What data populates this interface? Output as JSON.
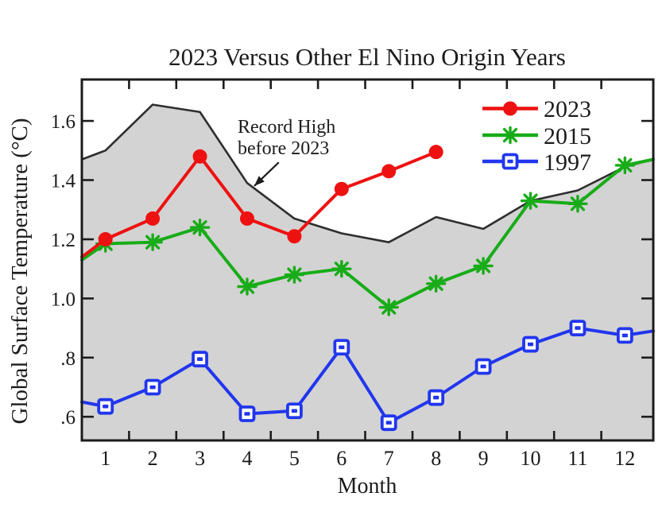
{
  "chart_data": {
    "type": "line",
    "title": "2023 Versus Other El Nino Origin Years",
    "xlabel": "Month",
    "ylabel": "Global Surface Temperature (°C)",
    "x_tick_labels": [
      "1",
      "2",
      "3",
      "4",
      "5",
      "6",
      "7",
      "8",
      "9",
      "10",
      "11",
      "12"
    ],
    "y_tick_labels": [
      ".6",
      ".8",
      "1.0",
      "1.2",
      "1.4",
      "1.6"
    ],
    "y_tick_values": [
      0.6,
      0.8,
      1.0,
      1.2,
      1.4,
      1.6
    ],
    "xlim": [
      0.5,
      12.6
    ],
    "ylim": [
      0.52,
      1.74
    ],
    "grid": false,
    "legend_position": "upper right",
    "record_high": {
      "name": "Record High before 2023",
      "annotation_line1": "Record High",
      "annotation_line2": "before 2023",
      "line_color": "#2e2e2e",
      "fill_color": "#d3d3d3",
      "x": [
        0.5,
        1,
        2,
        3,
        4,
        5,
        6,
        7,
        8,
        9,
        10,
        11,
        12,
        12.6
      ],
      "values": [
        1.47,
        1.5,
        1.655,
        1.63,
        1.39,
        1.27,
        1.22,
        1.19,
        1.275,
        1.235,
        1.33,
        1.365,
        1.445,
        1.47
      ],
      "arrow_tip": {
        "month": 4.15,
        "value": 1.38
      },
      "arrow_tail": {
        "month": 4.67,
        "value": 1.46
      }
    },
    "series": [
      {
        "name": "2023",
        "color": "#ee1111",
        "marker": "circle",
        "x": [
          0.5,
          1,
          2,
          3,
          4,
          5,
          6,
          7,
          8
        ],
        "values": [
          1.14,
          1.2,
          1.27,
          1.48,
          1.27,
          1.21,
          1.37,
          1.43,
          1.495
        ]
      },
      {
        "name": "2015",
        "color": "#18ac18",
        "marker": "asterisk",
        "x": [
          0.5,
          1,
          2,
          3,
          4,
          5,
          6,
          7,
          8,
          9,
          10,
          11,
          12,
          12.6
        ],
        "values": [
          1.13,
          1.185,
          1.19,
          1.24,
          1.04,
          1.08,
          1.1,
          0.97,
          1.05,
          1.11,
          1.33,
          1.32,
          1.45,
          1.47
        ]
      },
      {
        "name": "1997",
        "color": "#2136ee",
        "marker": "square",
        "x": [
          0.5,
          1,
          2,
          3,
          4,
          5,
          6,
          7,
          8,
          9,
          10,
          11,
          12,
          12.6
        ],
        "values": [
          0.65,
          0.635,
          0.7,
          0.795,
          0.61,
          0.62,
          0.835,
          0.58,
          0.665,
          0.77,
          0.845,
          0.9,
          0.875,
          0.89
        ]
      }
    ]
  }
}
